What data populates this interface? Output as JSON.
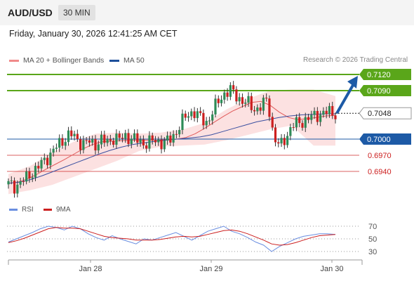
{
  "header": {
    "pair": "AUD/USD",
    "timeframe": "30 MIN"
  },
  "datetime": "Friday, January 30, 2026 12:41:25 AM CET",
  "legend": {
    "ma20_label": "MA 20 + Bollinger Bands",
    "ma50_label": "MA 50",
    "credit": "Research © 2026 Trading Central"
  },
  "rsi_legend": {
    "rsi_label": "RSI",
    "ma9_label": "9MA"
  },
  "colors": {
    "support_resistance_green": "#5aa61a",
    "blue_line": "#1d5aa6",
    "red_line": "#cc1f1f",
    "bollinger_fill": "#fbd9d9",
    "rsi_blue": "#6a8ee0",
    "rsi_red": "#cc1f1f"
  },
  "chart_data": {
    "type": "candlestick",
    "x_ticks": [
      "Jan 28",
      "Jan 29",
      "Jan 30"
    ],
    "ylim": [
      0.6905,
      0.7145
    ],
    "current_price": {
      "label": "0.7048",
      "value": 0.7048
    },
    "levels": [
      {
        "label": "0.7120",
        "value": 0.712,
        "kind": "green",
        "badge": true
      },
      {
        "label": "0.7090",
        "value": 0.709,
        "kind": "green",
        "badge": true
      },
      {
        "label": "0.7000",
        "value": 0.7,
        "kind": "blue",
        "badge": true
      },
      {
        "label": "0.6970",
        "value": 0.697,
        "kind": "red",
        "badge": false
      },
      {
        "label": "0.6940",
        "value": 0.694,
        "kind": "red",
        "badge": false
      }
    ],
    "close_path": [
      0.6916,
      0.6912,
      0.692,
      0.6928,
      0.694,
      0.695,
      0.6962,
      0.6975,
      0.6988,
      0.7,
      0.701,
      0.7,
      0.6992,
      0.6995,
      0.699,
      0.6998,
      0.6994,
      0.7003,
      0.6999,
      0.7006,
      0.7001,
      0.6997,
      0.6992,
      0.6995,
      0.6997,
      0.6993,
      0.6996,
      0.701,
      0.703,
      0.7045,
      0.7052,
      0.704,
      0.703,
      0.7048,
      0.707,
      0.7085,
      0.709,
      0.708,
      0.707,
      0.7065,
      0.7055,
      0.706,
      0.7075,
      0.7003,
      0.6985,
      0.7005,
      0.7025,
      0.703,
      0.7035,
      0.704,
      0.7045,
      0.7048,
      0.705,
      0.7048
    ],
    "ma20_path": [
      0.6918,
      0.692,
      0.6926,
      0.6934,
      0.6944,
      0.6953,
      0.6962,
      0.6972,
      0.6982,
      0.699,
      0.6995,
      0.6996,
      0.6997,
      0.6998,
      0.6998,
      0.6998,
      0.6998,
      0.6999,
      0.7,
      0.7003,
      0.701,
      0.702,
      0.7031,
      0.7042,
      0.7052,
      0.706,
      0.7068,
      0.707,
      0.7063,
      0.705,
      0.704,
      0.7036,
      0.7038,
      0.704,
      0.7043,
      0.7044
    ],
    "ma50_path": [
      0.6918,
      0.692,
      0.6925,
      0.6932,
      0.694,
      0.6948,
      0.6956,
      0.6964,
      0.6972,
      0.6979,
      0.6985,
      0.699,
      0.6993,
      0.6996,
      0.6998,
      0.7,
      0.7002,
      0.7004,
      0.7008,
      0.7014,
      0.702,
      0.7026,
      0.7032,
      0.7036,
      0.704,
      0.7043,
      0.7045,
      0.7046,
      0.7047,
      0.7047
    ],
    "bb_upper": [
      0.6935,
      0.695,
      0.6975,
      0.6995,
      0.701,
      0.7012,
      0.701,
      0.7012,
      0.7018,
      0.703,
      0.7055,
      0.7075,
      0.709,
      0.7092,
      0.7092,
      0.708
    ],
    "bb_lower": [
      0.6898,
      0.6905,
      0.6915,
      0.693,
      0.6945,
      0.696,
      0.6978,
      0.6986,
      0.6988,
      0.699,
      0.6998,
      0.7008,
      0.7018,
      0.7025,
      0.6988,
      0.6988
    ],
    "projection": {
      "from": 0.7048,
      "to": 0.712
    },
    "rsi": {
      "ticks": [
        70,
        50,
        30
      ],
      "ylim": [
        22,
        78
      ],
      "rsi_values": [
        45,
        50,
        55,
        60,
        66,
        70,
        68,
        64,
        70,
        66,
        58,
        52,
        48,
        55,
        50,
        46,
        42,
        50,
        48,
        52,
        56,
        60,
        54,
        48,
        55,
        62,
        66,
        70,
        62,
        58,
        52,
        45,
        40,
        30,
        38,
        44,
        50,
        54,
        56,
        58,
        58,
        57
      ],
      "ma9_values": [
        44,
        47,
        51,
        56,
        61,
        66,
        68,
        67,
        67,
        66,
        62,
        58,
        54,
        52,
        51,
        50,
        48,
        48,
        48,
        49,
        51,
        53,
        54,
        53,
        54,
        57,
        60,
        63,
        64,
        62,
        58,
        53,
        48,
        42,
        40,
        41,
        44,
        48,
        52,
        55,
        56,
        57
      ]
    }
  }
}
